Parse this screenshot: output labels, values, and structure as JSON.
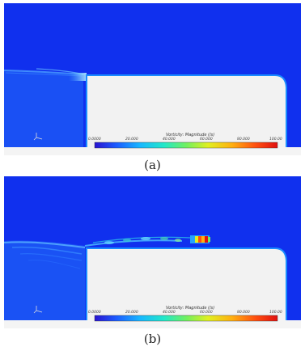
{
  "panels": [
    {
      "id": "a",
      "caption": "(a)",
      "colorbar": {
        "title": "Vorticity: Magnitude (/s)",
        "ticks": [
          "0.0000",
          "20.000",
          "40.000",
          "60.000",
          "80.000",
          "100.00"
        ]
      }
    },
    {
      "id": "b",
      "caption": "(b)",
      "colorbar": {
        "title": "Vorticity: Magnitude (/s)",
        "ticks": [
          "0.0000",
          "20.000",
          "40.000",
          "60.000",
          "80.000",
          "100.00"
        ]
      }
    }
  ],
  "colors": {
    "background_field": "#1030ee",
    "body": "#f2f2f2",
    "colormap": [
      "#2a14d0",
      "#1c5cff",
      "#18b8ff",
      "#22e8c8",
      "#70f060",
      "#e0f020",
      "#ffb010",
      "#ff5010",
      "#e01010"
    ]
  }
}
